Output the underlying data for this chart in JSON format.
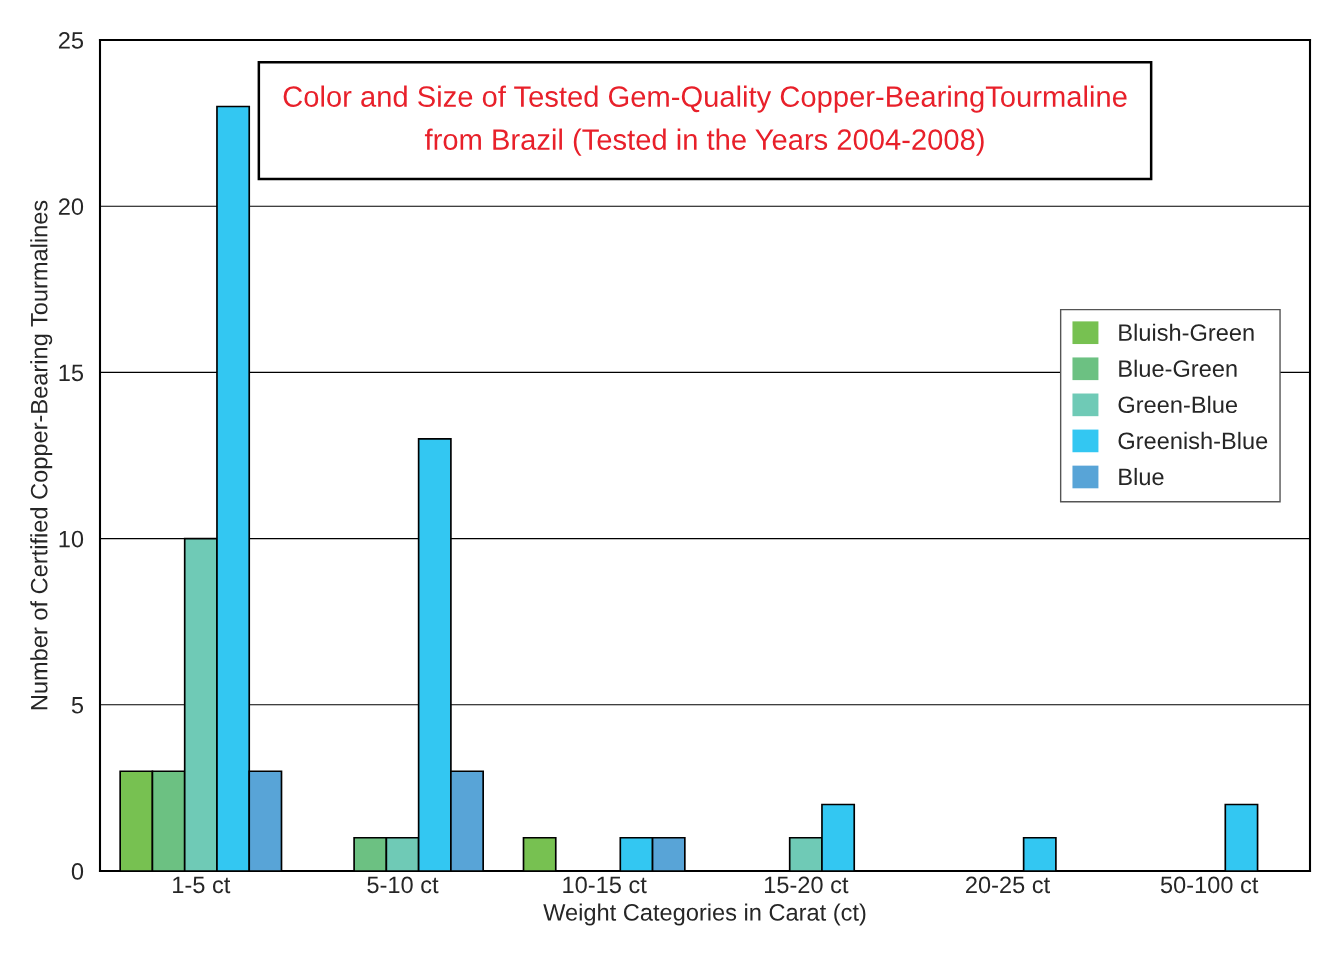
{
  "chart_data": {
    "type": "bar",
    "title": "Color and Size of Tested Gem-Quality Copper-BearingTourmaline\nfrom Brazil (Tested in the Years 2004-2008)",
    "xlabel": "Weight Categories in Carat (ct)",
    "ylabel": "Number of Certified Copper-Bearing Tourmalines",
    "categories": [
      "1-5 ct",
      "5-10 ct",
      "10-15 ct",
      "15-20 ct",
      "20-25 ct",
      "50-100 ct"
    ],
    "series": [
      {
        "name": "Bluish-Green",
        "color": "#77c151",
        "values": [
          3,
          null,
          1,
          null,
          null,
          null
        ]
      },
      {
        "name": "Blue-Green",
        "color": "#6cc182",
        "values": [
          3,
          1,
          null,
          null,
          null,
          null
        ]
      },
      {
        "name": "Green-Blue",
        "color": "#6fcab6",
        "values": [
          10,
          1,
          null,
          1,
          null,
          null
        ]
      },
      {
        "name": "Greenish-Blue",
        "color": "#33c7f2",
        "values": [
          23,
          13,
          1,
          2,
          1,
          2
        ]
      },
      {
        "name": "Blue",
        "color": "#58a4d7",
        "values": [
          3,
          3,
          1,
          null,
          null,
          null
        ]
      }
    ],
    "ylim": [
      0,
      25
    ],
    "yticks": [
      0,
      5,
      10,
      15,
      20,
      25
    ],
    "grid": "y",
    "legend": "right"
  }
}
